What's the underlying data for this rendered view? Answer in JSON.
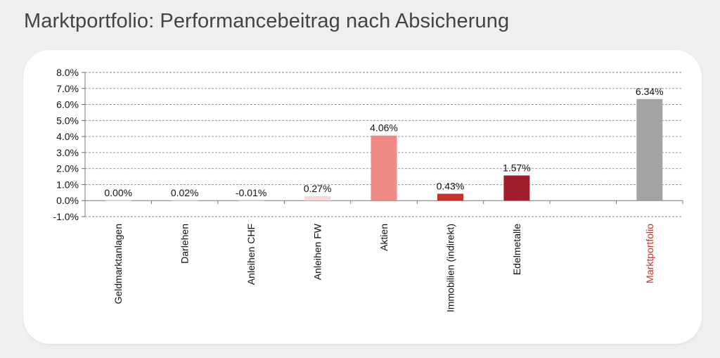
{
  "page": {
    "title": "Marktportfolio: Performancebeitrag nach Absicherung"
  },
  "chart_data": {
    "type": "bar",
    "title": "",
    "xlabel": "",
    "ylabel": "",
    "ylim": [
      -1.0,
      8.0
    ],
    "y_ticks": [
      "-1.0%",
      "0.0%",
      "1.0%",
      "2.0%",
      "3.0%",
      "4.0%",
      "5.0%",
      "6.0%",
      "7.0%",
      "8.0%"
    ],
    "y_tick_values": [
      -1,
      0,
      1,
      2,
      3,
      4,
      5,
      6,
      7,
      8
    ],
    "grid": "horizontal dashed",
    "legend": "none",
    "categories": [
      "Geldmarktanlagen",
      "Darlehen",
      "Anleihen CHF",
      "Anleihen FW",
      "Aktien",
      "Immobilien (indirekt)",
      "Edelmetalle",
      "",
      "Marktportfolio"
    ],
    "values": [
      0.0,
      0.02,
      -0.01,
      0.27,
      4.06,
      0.43,
      1.57,
      null,
      6.34
    ],
    "value_labels": [
      "0.00%",
      "0.02%",
      "-0.01%",
      "0.27%",
      "4.06%",
      "0.43%",
      "1.57%",
      "",
      "6.34%"
    ],
    "bar_colors": [
      "#ffffff",
      "#f9dcdc",
      "#f9dcdc",
      "#f7d8d8",
      "#ef8a86",
      "#c8302a",
      "#a01c2a",
      "#ffffff",
      "#a3a3a3"
    ],
    "category_label_colors": [
      "#111111",
      "#111111",
      "#111111",
      "#111111",
      "#111111",
      "#111111",
      "#111111",
      "#111111",
      "#c0332e"
    ]
  }
}
